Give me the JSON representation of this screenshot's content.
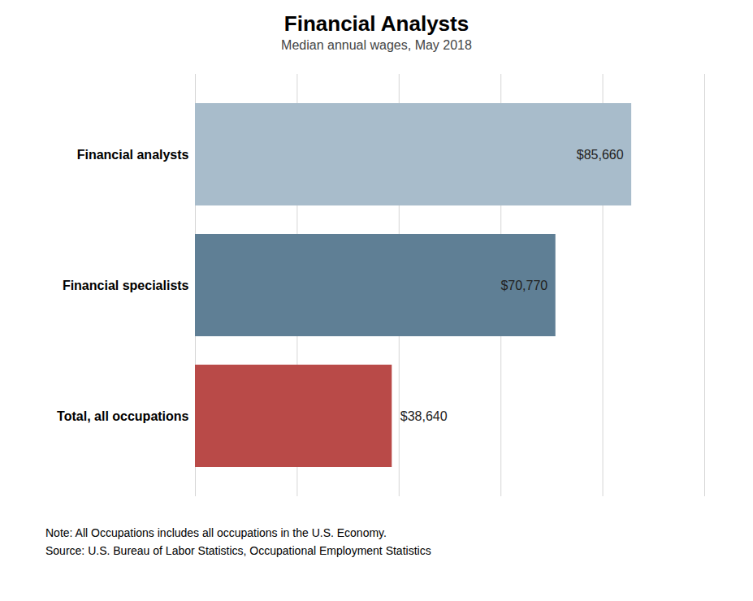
{
  "chart_data": {
    "type": "bar",
    "orientation": "horizontal",
    "title": "Financial Analysts",
    "subtitle": "Median annual wages, May 2018",
    "categories": [
      "Financial analysts",
      "Financial specialists",
      "Total, all occupations"
    ],
    "values": [
      85660,
      70770,
      38640
    ],
    "value_labels": [
      "$85,660",
      "$70,770",
      "$38,640"
    ],
    "colors": [
      "#a8bccb",
      "#5f7f95",
      "#b94a48"
    ],
    "xlim": [
      0,
      100000
    ],
    "xticks": [
      0,
      20000,
      40000,
      60000,
      80000,
      100000
    ],
    "grid": true,
    "data_labels": true,
    "tick_labels": "y",
    "annotations": [
      "Note: All Occupations includes all occupations in the U.S. Economy.",
      "Source: U.S. Bureau of Labor Statistics, Occupational Employment Statistics"
    ]
  }
}
